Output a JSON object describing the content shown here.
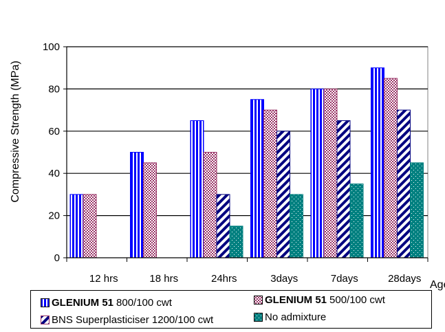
{
  "chart_data": {
    "type": "bar",
    "ylabel": "Compressive Strength (MPa)",
    "xlabel": "Age",
    "ylim": [
      0,
      100
    ],
    "yticks": [
      0,
      20,
      40,
      60,
      80,
      100
    ],
    "grid": true,
    "legend_position": "bottom",
    "categories": [
      "12 hrs",
      "18 hrs",
      "24hrs",
      "3days",
      "7days",
      "28days"
    ],
    "series": [
      {
        "name": "GLENIUM 51 800/100 cwt",
        "name_bold": "GLENIUM 51",
        "name_rest": "800/100 cwt",
        "values": [
          30,
          50,
          65,
          75,
          80,
          90
        ],
        "color": "#0000ff"
      },
      {
        "name": "GLENIUM 51 500/100 cwt",
        "name_bold": "GLENIUM 51",
        "name_rest": "500/100 cwt",
        "values": [
          30,
          45,
          50,
          70,
          80,
          85
        ],
        "color": "#993366"
      },
      {
        "name": "BNS Superplasticiser 1200/100 cwt",
        "name_bold": "",
        "name_rest": "BNS Superplasticiser 1200/100 cwt",
        "values": [
          null,
          null,
          30,
          60,
          65,
          70
        ],
        "color": "#000080"
      },
      {
        "name": "No admixture",
        "name_bold": "",
        "name_rest": "No admixture",
        "values": [
          null,
          null,
          15,
          30,
          35,
          45
        ],
        "color": "#008080"
      }
    ]
  }
}
